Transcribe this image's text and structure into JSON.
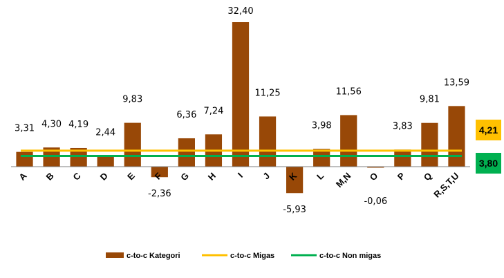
{
  "chart_data": {
    "type": "bar",
    "categories": [
      "A",
      "B",
      "C",
      "D",
      "E",
      "F",
      "G",
      "H",
      "I",
      "J",
      "K",
      "L",
      "M,N",
      "O",
      "P",
      "Q",
      "R,S,T,U"
    ],
    "series": [
      {
        "name": "c-to-c Kategori",
        "color": "#984807",
        "values": [
          3.31,
          4.3,
          4.19,
          2.44,
          9.83,
          -2.36,
          6.36,
          7.24,
          32.4,
          11.25,
          -5.93,
          3.98,
          11.56,
          -0.06,
          3.83,
          9.81,
          13.59
        ],
        "labels": [
          "3,31",
          "4,30",
          "4,19",
          "2,44",
          "9,83",
          "-2,36",
          "6,36",
          "7,24",
          "32,40",
          "11,25",
          "-5,93",
          "3,98",
          "11,56",
          "-0,06",
          "3,83",
          "9,81",
          "13,59"
        ]
      }
    ],
    "reference_lines": [
      {
        "name": "c-to-c Migas",
        "value": 4.21,
        "label": "4,21",
        "color": "#FFC000"
      },
      {
        "name": "c-to-c Non migas",
        "value": 3.8,
        "label": "3,80",
        "color": "#00B050"
      }
    ],
    "ylim": [
      -6,
      33
    ],
    "grid": false,
    "legend_position": "bottom",
    "title": "",
    "xlabel": "",
    "ylabel": ""
  }
}
